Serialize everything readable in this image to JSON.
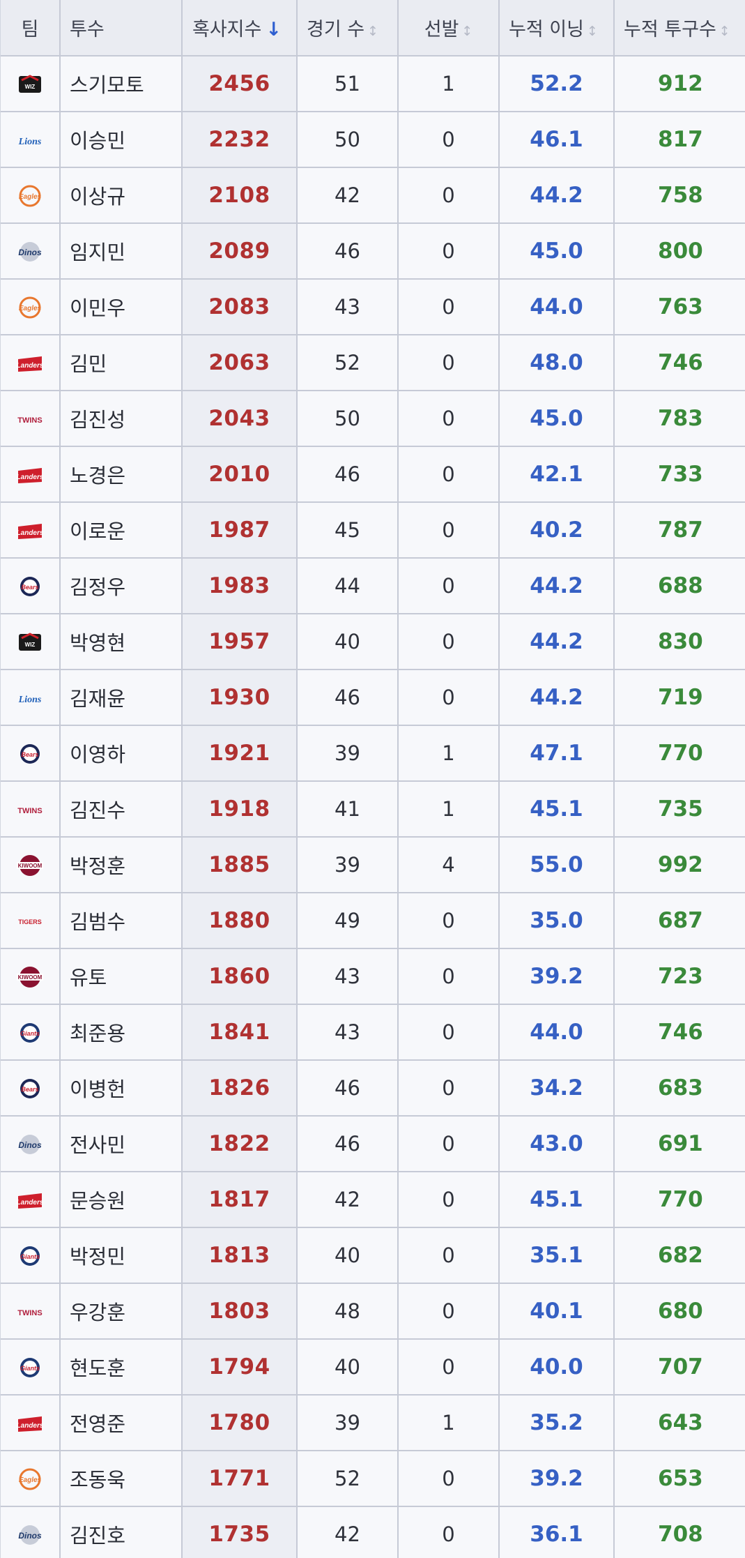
{
  "headers": {
    "team": "팀",
    "pitcher": "투수",
    "index": "혹사지수",
    "index_sort": "↓",
    "games": "경기 수",
    "starts": "선발",
    "innings": "누적 이닝",
    "pitches": "누적 투구수",
    "sort_icon": "↕"
  },
  "team_logos": {
    "kt": {
      "label": "KT WIZ",
      "color": "#1a1a1a",
      "accent": "#d0232a"
    },
    "lions": {
      "label": "Lions",
      "color": "#1f5fb8"
    },
    "eagles": {
      "label": "Eagles",
      "color": "#e8772e"
    },
    "dinos": {
      "label": "Dinos",
      "color": "#1f3a6b"
    },
    "landers": {
      "label": "Landers",
      "color": "#ce1f2c"
    },
    "twins": {
      "label": "TWINS",
      "color": "#b01e3c"
    },
    "bears": {
      "label": "Bears",
      "color": "#1c2756"
    },
    "kiwoom": {
      "label": "KIWOOM",
      "color": "#8a1230"
    },
    "tigers": {
      "label": "TIGERS",
      "color": "#c8202f"
    },
    "giants": {
      "label": "Giants",
      "color": "#1e3a74"
    }
  },
  "rows": [
    {
      "team": "kt",
      "name": "스기모토",
      "index": "2456",
      "games": "51",
      "starts": "1",
      "innings": "52.2",
      "pitches": "912"
    },
    {
      "team": "lions",
      "name": "이승민",
      "index": "2232",
      "games": "50",
      "starts": "0",
      "innings": "46.1",
      "pitches": "817"
    },
    {
      "team": "eagles",
      "name": "이상규",
      "index": "2108",
      "games": "42",
      "starts": "0",
      "innings": "44.2",
      "pitches": "758"
    },
    {
      "team": "dinos",
      "name": "임지민",
      "index": "2089",
      "games": "46",
      "starts": "0",
      "innings": "45.0",
      "pitches": "800"
    },
    {
      "team": "eagles",
      "name": "이민우",
      "index": "2083",
      "games": "43",
      "starts": "0",
      "innings": "44.0",
      "pitches": "763"
    },
    {
      "team": "landers",
      "name": "김민",
      "index": "2063",
      "games": "52",
      "starts": "0",
      "innings": "48.0",
      "pitches": "746"
    },
    {
      "team": "twins",
      "name": "김진성",
      "index": "2043",
      "games": "50",
      "starts": "0",
      "innings": "45.0",
      "pitches": "783"
    },
    {
      "team": "landers",
      "name": "노경은",
      "index": "2010",
      "games": "46",
      "starts": "0",
      "innings": "42.1",
      "pitches": "733"
    },
    {
      "team": "landers",
      "name": "이로운",
      "index": "1987",
      "games": "45",
      "starts": "0",
      "innings": "40.2",
      "pitches": "787"
    },
    {
      "team": "bears",
      "name": "김정우",
      "index": "1983",
      "games": "44",
      "starts": "0",
      "innings": "44.2",
      "pitches": "688"
    },
    {
      "team": "kt",
      "name": "박영현",
      "index": "1957",
      "games": "40",
      "starts": "0",
      "innings": "44.2",
      "pitches": "830"
    },
    {
      "team": "lions",
      "name": "김재윤",
      "index": "1930",
      "games": "46",
      "starts": "0",
      "innings": "44.2",
      "pitches": "719"
    },
    {
      "team": "bears",
      "name": "이영하",
      "index": "1921",
      "games": "39",
      "starts": "1",
      "innings": "47.1",
      "pitches": "770"
    },
    {
      "team": "twins",
      "name": "김진수",
      "index": "1918",
      "games": "41",
      "starts": "1",
      "innings": "45.1",
      "pitches": "735"
    },
    {
      "team": "kiwoom",
      "name": "박정훈",
      "index": "1885",
      "games": "39",
      "starts": "4",
      "innings": "55.0",
      "pitches": "992"
    },
    {
      "team": "tigers",
      "name": "김범수",
      "index": "1880",
      "games": "49",
      "starts": "0",
      "innings": "35.0",
      "pitches": "687"
    },
    {
      "team": "kiwoom",
      "name": "유토",
      "index": "1860",
      "games": "43",
      "starts": "0",
      "innings": "39.2",
      "pitches": "723"
    },
    {
      "team": "giants",
      "name": "최준용",
      "index": "1841",
      "games": "43",
      "starts": "0",
      "innings": "44.0",
      "pitches": "746"
    },
    {
      "team": "bears",
      "name": "이병헌",
      "index": "1826",
      "games": "46",
      "starts": "0",
      "innings": "34.2",
      "pitches": "683"
    },
    {
      "team": "dinos",
      "name": "전사민",
      "index": "1822",
      "games": "46",
      "starts": "0",
      "innings": "43.0",
      "pitches": "691"
    },
    {
      "team": "landers",
      "name": "문승원",
      "index": "1817",
      "games": "42",
      "starts": "0",
      "innings": "45.1",
      "pitches": "770"
    },
    {
      "team": "giants",
      "name": "박정민",
      "index": "1813",
      "games": "40",
      "starts": "0",
      "innings": "35.1",
      "pitches": "682"
    },
    {
      "team": "twins",
      "name": "우강훈",
      "index": "1803",
      "games": "48",
      "starts": "0",
      "innings": "40.1",
      "pitches": "680"
    },
    {
      "team": "giants",
      "name": "현도훈",
      "index": "1794",
      "games": "40",
      "starts": "0",
      "innings": "40.0",
      "pitches": "707"
    },
    {
      "team": "landers",
      "name": "전영준",
      "index": "1780",
      "games": "39",
      "starts": "1",
      "innings": "35.2",
      "pitches": "643"
    },
    {
      "team": "eagles",
      "name": "조동욱",
      "index": "1771",
      "games": "52",
      "starts": "0",
      "innings": "39.2",
      "pitches": "653"
    },
    {
      "team": "dinos",
      "name": "김진호",
      "index": "1735",
      "games": "42",
      "starts": "0",
      "innings": "36.1",
      "pitches": "708"
    }
  ]
}
